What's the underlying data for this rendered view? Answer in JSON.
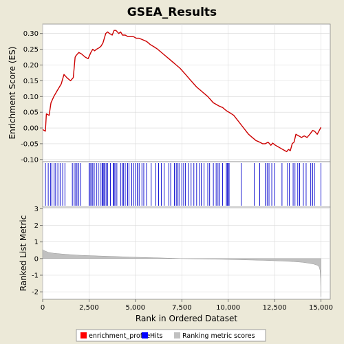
{
  "chart_data": {
    "title": "GSEA_Results",
    "xlabel": "Rank in Ordered Dataset",
    "xlim": [
      0,
      15500
    ],
    "x_ticks": [
      "0",
      "2,500",
      "5,000",
      "7,500",
      "10,000",
      "12,500",
      "15,000"
    ],
    "x_tick_values": [
      0,
      2500,
      5000,
      7500,
      10000,
      12500,
      15000
    ],
    "panels": [
      {
        "type": "line",
        "name": "enrichment",
        "ylabel": "Enrichment Score (ES)",
        "ylim": [
          -0.107,
          0.33
        ],
        "y_ticks": [
          "-0.10",
          "-0.05",
          "0.00",
          "0.05",
          "0.10",
          "0.15",
          "0.20",
          "0.25",
          "0.30"
        ],
        "y_tick_values": [
          -0.1,
          -0.05,
          0.0,
          0.05,
          0.1,
          0.15,
          0.2,
          0.25,
          0.3
        ],
        "grid": true,
        "color": "#cc0000",
        "x": [
          0,
          150,
          200,
          350,
          450,
          600,
          750,
          900,
          1000,
          1150,
          1300,
          1500,
          1650,
          1750,
          1800,
          1950,
          2100,
          2300,
          2450,
          2600,
          2700,
          2800,
          2900,
          3050,
          3150,
          3250,
          3400,
          3500,
          3600,
          3750,
          3850,
          3950,
          4100,
          4200,
          4300,
          4450,
          4600,
          4750,
          4900,
          5050,
          5200,
          5400,
          5600,
          5800,
          6000,
          6200,
          6500,
          6800,
          7100,
          7400,
          7700,
          8000,
          8300,
          8600,
          8900,
          9200,
          9500,
          9700,
          9900,
          10100,
          10300,
          10500,
          10700,
          10900,
          11100,
          11300,
          11500,
          11700,
          11850,
          12000,
          12150,
          12300,
          12400,
          12550,
          12700,
          12850,
          13000,
          13150,
          13250,
          13350,
          13450,
          13550,
          13650,
          13800,
          13950,
          14100,
          14250,
          14400,
          14550,
          14650,
          14800,
          15000
        ],
        "y": [
          -0.005,
          -0.01,
          0.045,
          0.04,
          0.08,
          0.1,
          0.115,
          0.13,
          0.14,
          0.17,
          0.16,
          0.15,
          0.16,
          0.225,
          0.23,
          0.24,
          0.235,
          0.225,
          0.22,
          0.24,
          0.25,
          0.245,
          0.25,
          0.255,
          0.26,
          0.27,
          0.3,
          0.305,
          0.3,
          0.295,
          0.31,
          0.31,
          0.3,
          0.305,
          0.295,
          0.295,
          0.29,
          0.29,
          0.29,
          0.285,
          0.285,
          0.28,
          0.275,
          0.265,
          0.258,
          0.25,
          0.235,
          0.22,
          0.205,
          0.19,
          0.17,
          0.15,
          0.13,
          0.115,
          0.1,
          0.08,
          0.07,
          0.065,
          0.055,
          0.048,
          0.04,
          0.025,
          0.01,
          -0.005,
          -0.02,
          -0.03,
          -0.04,
          -0.045,
          -0.05,
          -0.05,
          -0.045,
          -0.055,
          -0.048,
          -0.055,
          -0.06,
          -0.065,
          -0.07,
          -0.075,
          -0.068,
          -0.072,
          -0.05,
          -0.045,
          -0.02,
          -0.025,
          -0.03,
          -0.025,
          -0.03,
          -0.02,
          -0.008,
          -0.01,
          -0.02,
          0.002
        ]
      },
      {
        "type": "hits",
        "name": "hits",
        "color": "#0000cc",
        "x": [
          150,
          300,
          420,
          500,
          620,
          700,
          820,
          940,
          1080,
          1200,
          1600,
          1700,
          1780,
          1850,
          1950,
          2050,
          2500,
          2560,
          2620,
          2700,
          2780,
          2900,
          3000,
          3100,
          3200,
          3250,
          3300,
          3350,
          3420,
          3500,
          3650,
          3800,
          3850,
          3900,
          4000,
          4200,
          4280,
          4350,
          4450,
          4580,
          4650,
          4800,
          4900,
          5000,
          5100,
          5200,
          5350,
          5450,
          5600,
          5850,
          6100,
          6250,
          6400,
          6550,
          6800,
          6900,
          7100,
          7200,
          7250,
          7350,
          7500,
          7600,
          7700,
          7850,
          8000,
          8150,
          8300,
          8450,
          8550,
          8700,
          8900,
          9000,
          9200,
          9350,
          9450,
          9550,
          9700,
          9900,
          9950,
          10000,
          10050,
          10700,
          11400,
          11700,
          12000,
          12100,
          12200,
          12350,
          12500,
          12900,
          13200,
          13300,
          13500,
          13600,
          13750,
          13850,
          14050,
          14200,
          14450,
          14550,
          14650,
          15000
        ]
      },
      {
        "type": "area",
        "name": "ranking",
        "ylabel": "Ranked List Metric",
        "ylim": [
          -2.45,
          3.1
        ],
        "y_ticks": [
          "-2",
          "-1",
          "0",
          "1",
          "2",
          "3"
        ],
        "y_tick_values": [
          -2,
          -1,
          0,
          1,
          2,
          3
        ],
        "grid": true,
        "color": "#c0c0c0",
        "x": [
          0,
          50,
          150,
          300,
          600,
          1000,
          1500,
          2000,
          3000,
          4000,
          5000,
          6000,
          7000,
          7500,
          8000,
          9000,
          10000,
          11000,
          12000,
          13000,
          13500,
          14000,
          14300,
          14600,
          14800,
          14900,
          14950,
          14980,
          15000
        ],
        "y": [
          0.55,
          0.5,
          0.45,
          0.38,
          0.32,
          0.28,
          0.24,
          0.2,
          0.16,
          0.12,
          0.08,
          0.05,
          0.02,
          0.0,
          -0.01,
          -0.03,
          -0.05,
          -0.08,
          -0.11,
          -0.15,
          -0.18,
          -0.22,
          -0.27,
          -0.33,
          -0.4,
          -0.5,
          -0.7,
          -1.2,
          -2.3
        ]
      }
    ],
    "legend": {
      "position": "bottom",
      "items": [
        {
          "label": "enrichment_profile",
          "color": "#ff0000"
        },
        {
          "label": "Hits",
          "color": "#0000ff"
        },
        {
          "label": "Ranking metric scores",
          "color": "#c0c0c0"
        }
      ]
    }
  }
}
